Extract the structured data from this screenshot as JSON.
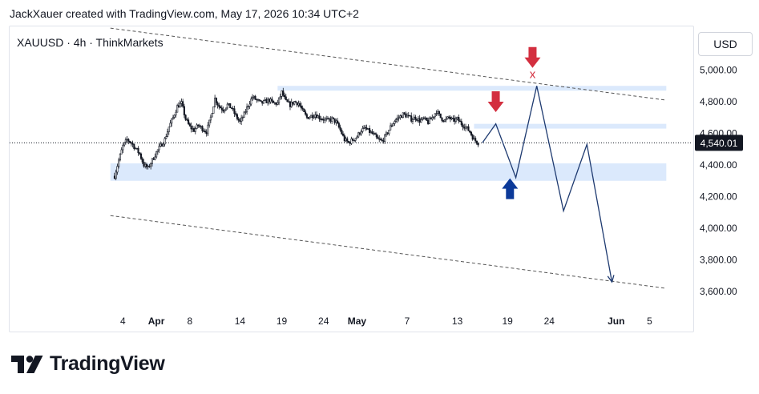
{
  "header": {
    "caption": "JackXauer created with TradingView.com, May 17, 2026 10:34 UTC+2"
  },
  "symbol": {
    "label": "XAUUSD · 4h · ThinkMarkets"
  },
  "price_axis": {
    "currency": "USD"
  },
  "brand": {
    "name": "TradingView",
    "logo_icon": "tradingview-logo-icon"
  },
  "colors": {
    "zone": "#dbe9fc",
    "projection": "#1e3a70",
    "sell_arrow": "#d32f3f",
    "buy_arrow": "#0c3a99",
    "candles": "#131722",
    "current_price_tag": "#131722"
  },
  "chart_data": {
    "type": "candlestick",
    "title": "",
    "xlabel": "",
    "ylabel": "",
    "ylim": [
      3560,
      5110
    ],
    "x_ticks": [
      {
        "label": "4",
        "day": -27
      },
      {
        "label": "Apr",
        "day": -23
      },
      {
        "label": "8",
        "day": -19
      },
      {
        "label": "14",
        "day": -13
      },
      {
        "label": "19",
        "day": -8
      },
      {
        "label": "24",
        "day": -3
      },
      {
        "label": "May",
        "day": 1
      },
      {
        "label": "7",
        "day": 7
      },
      {
        "label": "13",
        "day": 13
      },
      {
        "label": "19",
        "day": 19
      },
      {
        "label": "24",
        "day": 24
      },
      {
        "label": "Jun",
        "day": 32
      },
      {
        "label": "5",
        "day": 36
      }
    ],
    "y_ticks": [
      {
        "label": "5,000.00",
        "value": 5000
      },
      {
        "label": "4,800.00",
        "value": 4800
      },
      {
        "label": "4,600.00",
        "value": 4600
      },
      {
        "label": "4,400.00",
        "value": 4400
      },
      {
        "label": "4,200.00",
        "value": 4200
      },
      {
        "label": "4,000.00",
        "value": 4000
      },
      {
        "label": "3,800.00",
        "value": 3800
      },
      {
        "label": "3,600.00",
        "value": 3600
      }
    ],
    "current_price": {
      "value": 4540.01,
      "label": "4,540.01"
    },
    "price_path": [
      [
        -28,
        4330
      ],
      [
        -27.5,
        4430
      ],
      [
        -27,
        4520
      ],
      [
        -26.5,
        4560
      ],
      [
        -26,
        4540
      ],
      [
        -25,
        4470
      ],
      [
        -24.5,
        4400
      ],
      [
        -24,
        4380
      ],
      [
        -23.5,
        4430
      ],
      [
        -23,
        4480
      ],
      [
        -22.5,
        4520
      ],
      [
        -22,
        4560
      ],
      [
        -21.5,
        4640
      ],
      [
        -21,
        4700
      ],
      [
        -20.5,
        4770
      ],
      [
        -20,
        4790
      ],
      [
        -19.5,
        4690
      ],
      [
        -19,
        4640
      ],
      [
        -18.5,
        4620
      ],
      [
        -18,
        4650
      ],
      [
        -17.5,
        4630
      ],
      [
        -17,
        4610
      ],
      [
        -16.5,
        4700
      ],
      [
        -16,
        4820
      ],
      [
        -15.5,
        4770
      ],
      [
        -15,
        4750
      ],
      [
        -14.5,
        4780
      ],
      [
        -14,
        4760
      ],
      [
        -13.5,
        4710
      ],
      [
        -13,
        4670
      ],
      [
        -12.5,
        4720
      ],
      [
        -12,
        4780
      ],
      [
        -11.5,
        4830
      ],
      [
        -11,
        4810
      ],
      [
        -10.5,
        4790
      ],
      [
        -10,
        4800
      ],
      [
        -9.5,
        4810
      ],
      [
        -9,
        4790
      ],
      [
        -8.5,
        4790
      ],
      [
        -8,
        4860
      ],
      [
        -7.5,
        4800
      ],
      [
        -7,
        4780
      ],
      [
        -6.5,
        4800
      ],
      [
        -6,
        4790
      ],
      [
        -5.5,
        4740
      ],
      [
        -5,
        4700
      ],
      [
        -4.5,
        4710
      ],
      [
        -4,
        4720
      ],
      [
        -3.5,
        4700
      ],
      [
        -3,
        4690
      ],
      [
        -2.5,
        4680
      ],
      [
        -2,
        4690
      ],
      [
        -1.5,
        4670
      ],
      [
        -1,
        4620
      ],
      [
        -0.5,
        4560
      ],
      [
        0,
        4540
      ],
      [
        0.5,
        4560
      ],
      [
        1,
        4580
      ],
      [
        1.5,
        4620
      ],
      [
        2,
        4630
      ],
      [
        2.5,
        4610
      ],
      [
        3,
        4590
      ],
      [
        3.5,
        4560
      ],
      [
        4,
        4550
      ],
      [
        4.5,
        4590
      ],
      [
        5,
        4640
      ],
      [
        5.5,
        4680
      ],
      [
        6,
        4700
      ],
      [
        6.5,
        4720
      ],
      [
        7,
        4710
      ],
      [
        7.5,
        4690
      ],
      [
        8,
        4700
      ],
      [
        8.5,
        4680
      ],
      [
        9,
        4690
      ],
      [
        9.5,
        4670
      ],
      [
        10,
        4700
      ],
      [
        10.5,
        4740
      ],
      [
        11,
        4700
      ],
      [
        11.5,
        4680
      ],
      [
        12,
        4700
      ],
      [
        12.5,
        4680
      ],
      [
        13,
        4690
      ],
      [
        13.5,
        4660
      ],
      [
        14,
        4640
      ],
      [
        14.5,
        4610
      ],
      [
        15,
        4560
      ],
      [
        15.5,
        4540
      ]
    ],
    "zones": [
      {
        "name": "resistance",
        "from_day": -8.5,
        "to_day": 38,
        "low": 4870,
        "high": 4900
      },
      {
        "name": "mid",
        "from_day": 15,
        "to_day": 38,
        "low": 4630,
        "high": 4660
      },
      {
        "name": "support",
        "from_day": -28.5,
        "to_day": 38,
        "low": 4300,
        "high": 4410
      }
    ],
    "trend_lines": [
      {
        "from": [
          -28.5,
          5265
        ],
        "to": [
          38,
          4810
        ]
      },
      {
        "from": [
          -28.5,
          4080
        ],
        "to": [
          38,
          3620
        ]
      }
    ],
    "projection": [
      [
        16,
        4540
      ],
      [
        17.6,
        4660
      ],
      [
        20,
        4320
      ],
      [
        22.5,
        4900
      ],
      [
        25.7,
        4110
      ],
      [
        28.5,
        4530
      ],
      [
        31.5,
        3660
      ]
    ],
    "markers": [
      {
        "type": "sell-arrow",
        "day": 17.6,
        "value": 4800
      },
      {
        "type": "sell-arrow",
        "day": 22,
        "value": 5080,
        "label": "x"
      },
      {
        "type": "buy-arrow",
        "day": 19.3,
        "value": 4250
      }
    ]
  }
}
